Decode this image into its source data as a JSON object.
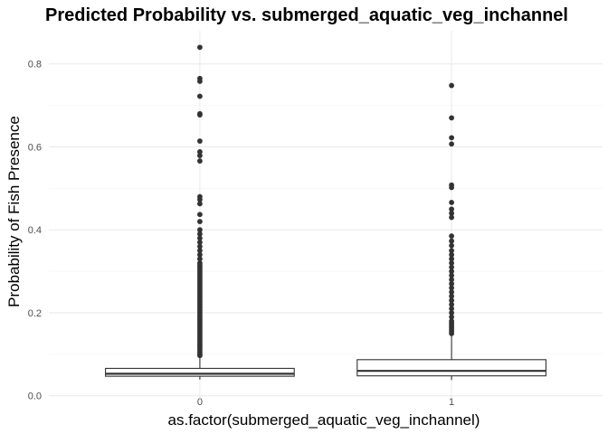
{
  "chart_data": {
    "type": "boxplot",
    "title": "Predicted Probability vs. submerged_aquatic_veg_inchannel",
    "xlabel": "as.factor(submerged_aquatic_veg_inchannel)",
    "ylabel": "Probability of Fish Presence",
    "categories": [
      "0",
      "1"
    ],
    "ylim": [
      -0.005,
      0.88
    ],
    "y_ticks": [
      0.0,
      0.2,
      0.4,
      0.6,
      0.8
    ],
    "y_tick_labels": [
      "0.0",
      "0.2",
      "0.4",
      "0.6",
      "0.8"
    ],
    "grid": true,
    "boxes": [
      {
        "category": "0",
        "min": 0.039,
        "q1": 0.047,
        "median": 0.053,
        "q3": 0.066,
        "max": 0.094,
        "outliers": [
          0.84,
          0.765,
          0.758,
          0.722,
          0.68,
          0.677,
          0.614,
          0.588,
          0.579,
          0.566,
          0.48,
          0.473,
          0.463,
          0.437,
          0.42,
          0.4,
          0.39,
          0.38,
          0.37,
          0.36,
          0.35,
          0.34,
          0.33,
          0.32,
          0.315,
          0.31,
          0.305,
          0.3,
          0.295,
          0.29,
          0.285,
          0.28,
          0.275,
          0.27,
          0.265,
          0.26,
          0.255,
          0.25,
          0.245,
          0.24,
          0.235,
          0.23,
          0.225,
          0.22,
          0.215,
          0.21,
          0.205,
          0.2,
          0.195,
          0.19,
          0.185,
          0.18,
          0.175,
          0.17,
          0.165,
          0.16,
          0.155,
          0.15,
          0.145,
          0.14,
          0.135,
          0.13,
          0.125,
          0.12,
          0.115,
          0.11,
          0.105,
          0.1,
          0.097
        ]
      },
      {
        "category": "1",
        "min": 0.038,
        "q1": 0.048,
        "median": 0.06,
        "q3": 0.087,
        "max": 0.145,
        "outliers": [
          0.748,
          0.67,
          0.622,
          0.607,
          0.508,
          0.502,
          0.466,
          0.45,
          0.44,
          0.43,
          0.385,
          0.373,
          0.362,
          0.35,
          0.34,
          0.33,
          0.32,
          0.31,
          0.3,
          0.29,
          0.28,
          0.27,
          0.26,
          0.25,
          0.24,
          0.23,
          0.22,
          0.21,
          0.2,
          0.19,
          0.18,
          0.175,
          0.17,
          0.165,
          0.16,
          0.155,
          0.15
        ]
      }
    ]
  }
}
